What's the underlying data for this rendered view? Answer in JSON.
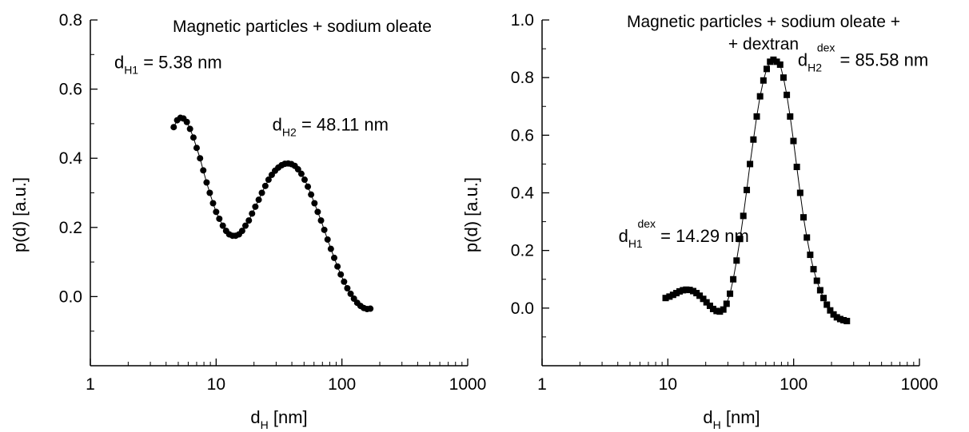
{
  "chart_data": [
    {
      "type": "scatter",
      "title": "Magnetic particles + sodium oleate",
      "xlabel": "d_H [nm]",
      "xlabel_parts": {
        "main": "d",
        "sub": "H",
        "rest": " [nm]"
      },
      "ylabel": "p(d) [a.u.]",
      "x_scale": "log",
      "xlim": [
        1,
        1000
      ],
      "ylim": [
        -0.2,
        0.8
      ],
      "x_ticks": [
        1,
        10,
        100,
        1000
      ],
      "x_tick_labels": [
        "1",
        "10",
        "100",
        "1000"
      ],
      "y_ticks": [
        0.0,
        0.2,
        0.4,
        0.6,
        0.8
      ],
      "y_tick_labels": [
        "0.0",
        "0.2",
        "0.4",
        "0.6",
        "0.8"
      ],
      "grid": false,
      "marker": "circle",
      "connect_line": true,
      "annotations": [
        {
          "main": "d",
          "sub": "H1",
          "sup": "",
          "rest": " = 5.38 nm",
          "x": 1.55,
          "y": 0.66
        },
        {
          "main": "d",
          "sub": "H2",
          "sup": "",
          "rest": " = 48.11 nm",
          "x": 28,
          "y": 0.48
        }
      ],
      "series": [
        {
          "x": [
            4.6,
            4.9,
            5.2,
            5.5,
            5.85,
            6.2,
            6.6,
            7.0,
            7.45,
            7.9,
            8.4,
            8.9,
            9.45,
            10.0,
            10.6,
            11.3,
            12.0,
            12.7,
            13.5,
            14.3,
            15.2,
            16.1,
            17.1,
            18.2,
            19.3,
            20.5,
            21.8,
            23.1,
            24.6,
            26.1,
            27.7,
            29.4,
            31.2,
            33.2,
            35.2,
            37.4,
            39.7,
            42.2,
            44.8,
            47.6,
            50.5,
            53.6,
            56.9,
            60.5,
            64.2,
            68.2,
            72.4,
            76.9,
            81.7,
            86.8,
            92.2,
            97.9,
            104,
            110.4,
            117.3,
            124.6,
            132.3,
            140.5,
            149.2,
            158.5,
            168.3
          ],
          "y": [
            0.49,
            0.51,
            0.517,
            0.515,
            0.505,
            0.485,
            0.46,
            0.43,
            0.4,
            0.365,
            0.33,
            0.3,
            0.27,
            0.245,
            0.225,
            0.205,
            0.19,
            0.18,
            0.176,
            0.176,
            0.18,
            0.19,
            0.205,
            0.22,
            0.24,
            0.26,
            0.28,
            0.3,
            0.32,
            0.338,
            0.352,
            0.364,
            0.373,
            0.38,
            0.384,
            0.385,
            0.383,
            0.378,
            0.368,
            0.355,
            0.338,
            0.318,
            0.295,
            0.27,
            0.245,
            0.22,
            0.193,
            0.165,
            0.138,
            0.112,
            0.087,
            0.064,
            0.043,
            0.024,
            0.008,
            -0.006,
            -0.018,
            -0.027,
            -0.033,
            -0.036,
            -0.035
          ]
        }
      ]
    },
    {
      "type": "scatter",
      "title": "Magnetic particles + sodium oleate +",
      "subtitle": "+ dextran",
      "xlabel": "d_H [nm]",
      "xlabel_parts": {
        "main": "d",
        "sub": "H",
        "rest": " [nm]"
      },
      "ylabel": "p(d) [a.u.]",
      "x_scale": "log",
      "xlim": [
        1,
        1000
      ],
      "ylim": [
        -0.2,
        1.0
      ],
      "x_ticks": [
        1,
        10,
        100,
        1000
      ],
      "x_tick_labels": [
        "1",
        "10",
        "100",
        "1000"
      ],
      "y_ticks": [
        0.0,
        0.2,
        0.4,
        0.6,
        0.8,
        1.0
      ],
      "y_tick_labels": [
        "0.0",
        "0.2",
        "0.4",
        "0.6",
        "0.8",
        "1.0"
      ],
      "grid": false,
      "marker": "square",
      "connect_line": true,
      "annotations": [
        {
          "main": "d",
          "sub": "H1",
          "sup": "dex",
          "rest": " = 14.29 nm",
          "x": 4.05,
          "y": 0.23
        },
        {
          "main": "d",
          "sub": "H2",
          "sup": "dex",
          "rest": " = 85.58 nm",
          "x": 108,
          "y": 0.84
        }
      ],
      "series": [
        {
          "x": [
            9.6,
            10.3,
            11.0,
            11.7,
            12.4,
            13.2,
            14.0,
            14.9,
            15.9,
            16.9,
            17.9,
            19.1,
            20.3,
            21.6,
            22.9,
            24.4,
            25.9,
            27.6,
            29.3,
            31.2,
            33.1,
            35.2,
            37.5,
            39.8,
            42.4,
            45.0,
            47.9,
            50.9,
            54.1,
            57.5,
            61.1,
            65.0,
            69.1,
            73.4,
            78.1,
            83.0,
            88.2,
            93.8,
            99.7,
            106,
            112.7,
            119.8,
            127.4,
            135.4,
            143.9,
            153.0,
            162.6,
            172.8,
            183.7,
            195.3,
            207.6,
            220.6,
            234.5,
            249.3,
            265.0
          ],
          "y": [
            0.035,
            0.04,
            0.046,
            0.052,
            0.058,
            0.062,
            0.064,
            0.063,
            0.059,
            0.052,
            0.043,
            0.032,
            0.02,
            0.008,
            -0.003,
            -0.01,
            -0.012,
            -0.005,
            0.015,
            0.05,
            0.1,
            0.165,
            0.24,
            0.32,
            0.41,
            0.5,
            0.585,
            0.665,
            0.735,
            0.79,
            0.83,
            0.855,
            0.862,
            0.855,
            0.845,
            0.8,
            0.74,
            0.665,
            0.58,
            0.49,
            0.4,
            0.315,
            0.245,
            0.185,
            0.135,
            0.095,
            0.062,
            0.035,
            0.012,
            -0.008,
            -0.022,
            -0.032,
            -0.038,
            -0.042,
            -0.045
          ]
        }
      ]
    }
  ]
}
